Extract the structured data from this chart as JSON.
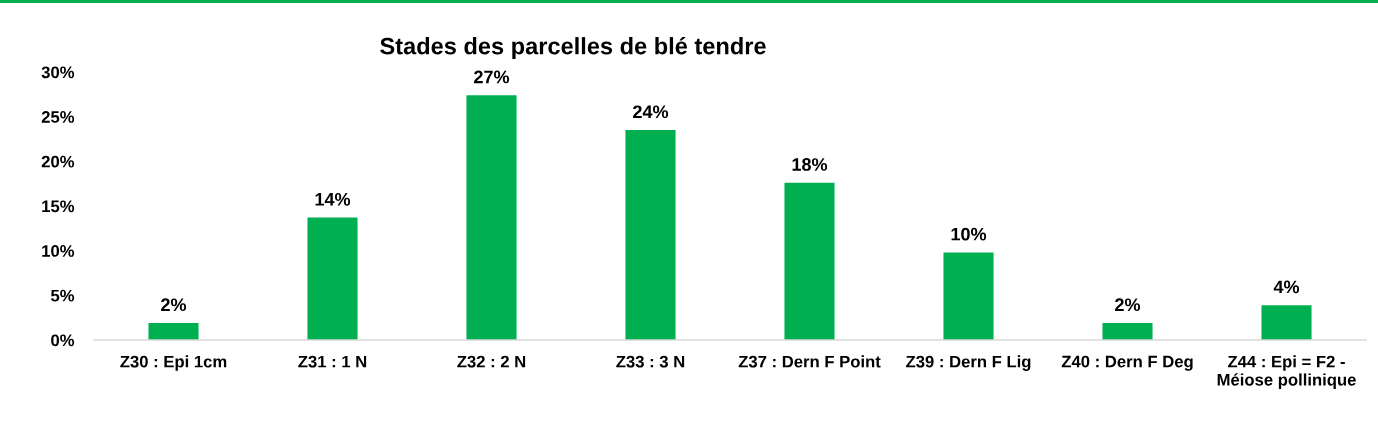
{
  "chart_data": {
    "type": "bar",
    "title": "Stades des parcelles de blé tendre",
    "categories": [
      "Z30 : Epi 1cm",
      "Z31 : 1 N",
      "Z32 : 2 N",
      "Z33 : 3 N",
      "Z37 : Dern F Point",
      "Z39 : Dern F Lig",
      "Z40 : Dern F Deg",
      "Z44 : Epi = F2 - Méiose pollinique"
    ],
    "values": [
      1.9,
      13.7,
      27.4,
      23.5,
      17.6,
      9.8,
      1.9,
      3.9
    ],
    "value_labels": [
      "2%",
      "14%",
      "27%",
      "24%",
      "18%",
      "10%",
      "2%",
      "4%"
    ],
    "color": "#00b050",
    "ylim": [
      0,
      30
    ],
    "yticks": [
      {
        "value": 0,
        "label": "0%"
      },
      {
        "value": 5,
        "label": "5%"
      },
      {
        "value": 10,
        "label": "10%"
      },
      {
        "value": 15,
        "label": "15%"
      },
      {
        "value": 20,
        "label": "20%"
      },
      {
        "value": 25,
        "label": "25%"
      },
      {
        "value": 30,
        "label": "30%"
      }
    ],
    "grid": false
  }
}
